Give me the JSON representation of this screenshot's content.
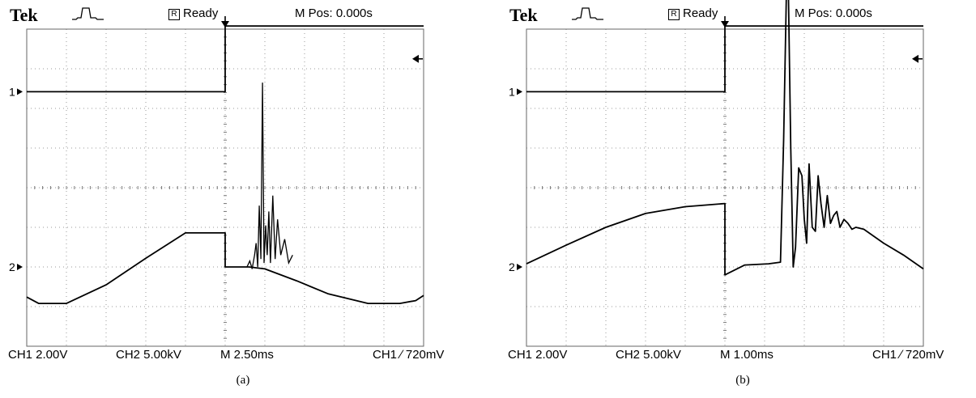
{
  "panels": [
    {
      "id": "a",
      "brand": "Tek",
      "acq_icon": "pulse-acquire-icon",
      "status_icon": "R",
      "status_text": "Ready",
      "mpos": "M Pos: 0.000s",
      "ch1_scale": "CH1  2.00V",
      "ch2_scale": "CH2  5.00kV",
      "timebase": "M 2.50ms",
      "trigger": "CH1 ∕ 720mV",
      "caption": "(a)",
      "ch1_marker": "1",
      "ch2_marker": "2"
    },
    {
      "id": "b",
      "brand": "Tek",
      "acq_icon": "pulse-acquire-icon",
      "status_icon": "R",
      "status_text": "Ready",
      "mpos": "M Pos: 0.000s",
      "ch1_scale": "CH1  2.00V",
      "ch2_scale": "CH2  5.00kV",
      "timebase": "M 1.00ms",
      "trigger": "CH1 ∕ 720mV",
      "caption": "(b)",
      "ch1_marker": "1",
      "ch2_marker": "2"
    }
  ],
  "chart_data": [
    {
      "type": "line",
      "grid": {
        "x_divisions": 10,
        "y_divisions": 8,
        "on": true
      },
      "x_unit": "div (2.50 ms/div)",
      "y_unit": "div",
      "series": [
        {
          "channel": "CH1",
          "volts_per_div": "2.00V",
          "x": [
            0,
            5.0,
            5.0,
            10
          ],
          "y": [
            6.42,
            6.42,
            8.08,
            8.08
          ]
        },
        {
          "channel": "CH2",
          "volts_per_div": "5.00kV",
          "x": [
            0,
            0.3,
            1.0,
            2.0,
            3.0,
            4.0,
            4.92,
            5.0,
            5.0,
            5.6,
            6.0,
            6.8,
            7.6,
            8.6,
            9.4,
            9.8,
            10
          ],
          "y": [
            1.24,
            1.08,
            1.08,
            1.55,
            2.22,
            2.86,
            2.86,
            2.86,
            2.0,
            2.0,
            1.95,
            1.65,
            1.32,
            1.08,
            1.08,
            1.15,
            1.28
          ]
        }
      ],
      "ch2_burst": {
        "x": [
          5.55,
          5.62,
          5.68,
          5.74,
          5.78,
          5.82,
          5.86,
          5.9,
          5.94,
          5.98,
          6.02,
          6.06,
          6.1,
          6.14,
          6.2,
          6.26,
          6.32,
          6.4,
          6.5,
          6.6,
          6.7
        ],
        "y": [
          2.0,
          2.15,
          1.95,
          2.3,
          2.6,
          2.0,
          3.55,
          2.2,
          6.65,
          2.1,
          3.05,
          2.3,
          3.4,
          2.1,
          3.8,
          2.2,
          3.2,
          2.3,
          2.7,
          2.1,
          2.3
        ]
      },
      "trigger_position_div": 5.0
    },
    {
      "type": "line",
      "grid": {
        "x_divisions": 10,
        "y_divisions": 8,
        "on": true
      },
      "x_unit": "div (1.00 ms/div)",
      "y_unit": "div",
      "series": [
        {
          "channel": "CH1",
          "volts_per_div": "2.00V",
          "x": [
            0,
            5.0,
            5.0,
            10
          ],
          "y": [
            6.42,
            6.42,
            8.08,
            8.08
          ]
        },
        {
          "channel": "CH2",
          "volts_per_div": "5.00kV",
          "x": [
            0,
            1.0,
            2.0,
            3.0,
            4.0,
            5.0,
            5.0,
            5.5,
            6.1,
            6.4
          ],
          "y": [
            2.08,
            2.55,
            3.0,
            3.35,
            3.52,
            3.6,
            1.8,
            2.05,
            2.08,
            2.12
          ]
        }
      ],
      "ch2_burst": {
        "x": [
          6.4,
          6.48,
          6.55,
          6.6,
          6.66,
          6.72,
          6.78,
          6.86,
          6.94,
          7.0,
          7.06,
          7.12,
          7.2,
          7.28,
          7.35,
          7.42,
          7.5,
          7.58,
          7.66,
          7.74,
          7.82,
          7.9,
          8.0,
          8.1,
          8.2,
          8.3,
          8.5,
          9.0,
          9.5,
          10
        ],
        "y": [
          2.12,
          5.2,
          8.9,
          8.9,
          5.0,
          2.0,
          2.5,
          4.5,
          4.3,
          3.2,
          2.6,
          4.6,
          3.0,
          2.9,
          4.3,
          3.6,
          3.0,
          3.8,
          3.1,
          3.3,
          3.4,
          3.0,
          3.2,
          3.1,
          2.95,
          3.0,
          2.95,
          2.6,
          2.3,
          1.95
        ]
      },
      "trigger_position_div": 5.0
    }
  ]
}
